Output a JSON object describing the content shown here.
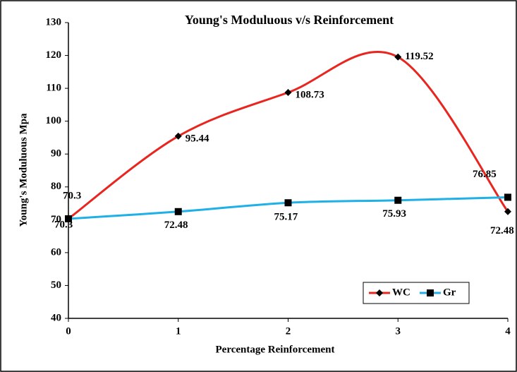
{
  "chart_data": {
    "type": "line",
    "title": "Young's Moduluous v/s Reinforcement",
    "x_label": "Percentage Reinforcement",
    "y_label": "Young's Moduluous Mpa",
    "x": [
      0,
      1,
      2,
      3,
      4
    ],
    "xlim": [
      0,
      4
    ],
    "xticks": [
      0,
      1,
      2,
      3,
      4
    ],
    "ylim": [
      40,
      130
    ],
    "yticks": [
      40,
      50,
      60,
      70,
      80,
      90,
      100,
      110,
      120,
      130
    ],
    "smooth": true,
    "legend": "lower right",
    "series": [
      {
        "name": "WC",
        "color": "#e8251f",
        "marker": "diamond",
        "values": [
          70.3,
          95.44,
          108.73,
          119.52,
          72.48
        ]
      },
      {
        "name": "Gr",
        "color": "#1eb0e6",
        "marker": "square",
        "values": [
          70.3,
          72.48,
          75.17,
          75.93,
          76.85
        ]
      }
    ]
  }
}
